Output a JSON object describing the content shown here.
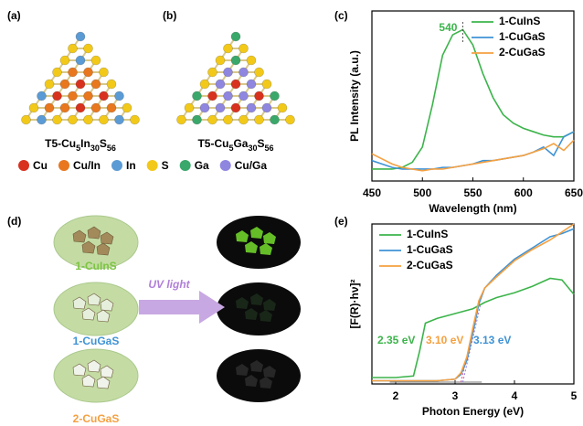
{
  "panel_labels": [
    "(a)",
    "(b)",
    "(c)",
    "(d)",
    "(e)"
  ],
  "structures": [
    {
      "formula": [
        "T5-Cu",
        "5",
        "In",
        "30",
        "S",
        "56"
      ]
    },
    {
      "formula": [
        "T5-Cu",
        "5",
        "Ga",
        "30",
        "S",
        "56"
      ]
    }
  ],
  "atom_legend": [
    {
      "label": "Cu",
      "color": "#d8311e"
    },
    {
      "label": "Cu/In",
      "color": "#e8771e"
    },
    {
      "label": "In",
      "color": "#5b9bd5"
    },
    {
      "label": "S",
      "color": "#f2c919"
    },
    {
      "label": "Ga",
      "color": "#3aa86b"
    },
    {
      "label": "Cu/Ga",
      "color": "#8f86e0"
    }
  ],
  "photos": {
    "samples": [
      {
        "label": "1-CuInS",
        "color": "#7cc443"
      },
      {
        "label": "1-CuGaS",
        "color": "#3f93d6"
      },
      {
        "label": "2-CuGaS",
        "color": "#f5a040"
      }
    ],
    "arrow_label": "UV light"
  },
  "chart_data": [
    {
      "type": "line",
      "x_label": "Wavelength (nm)",
      "y_label": "PL Intensity (a.u.)",
      "xlim": [
        450,
        650
      ],
      "xticks": [
        450,
        500,
        550,
        600,
        650
      ],
      "ylim": [
        0,
        1
      ],
      "legend": "upper right",
      "peak": 540,
      "peak_color": "#3cb44b",
      "x": [
        450,
        460,
        470,
        480,
        490,
        500,
        510,
        520,
        530,
        540,
        550,
        560,
        570,
        580,
        590,
        600,
        610,
        620,
        630,
        640,
        650
      ],
      "series": [
        {
          "name": "1-CuInS",
          "color": "#3cb44b",
          "values": [
            0.07,
            0.07,
            0.07,
            0.08,
            0.11,
            0.2,
            0.45,
            0.74,
            0.86,
            0.89,
            0.8,
            0.63,
            0.49,
            0.39,
            0.34,
            0.31,
            0.29,
            0.27,
            0.26,
            0.26,
            0.29
          ]
        },
        {
          "name": "1-CuGaS",
          "color": "#3f93d6",
          "values": [
            0.12,
            0.1,
            0.08,
            0.07,
            0.07,
            0.07,
            0.07,
            0.08,
            0.08,
            0.09,
            0.1,
            0.12,
            0.12,
            0.13,
            0.14,
            0.15,
            0.17,
            0.2,
            0.15,
            0.26,
            0.29
          ]
        },
        {
          "name": "2-CuGaS",
          "color": "#f5a040",
          "values": [
            0.16,
            0.13,
            0.1,
            0.08,
            0.07,
            0.06,
            0.07,
            0.07,
            0.08,
            0.09,
            0.1,
            0.11,
            0.12,
            0.13,
            0.14,
            0.15,
            0.17,
            0.19,
            0.22,
            0.18,
            0.24
          ]
        }
      ]
    },
    {
      "type": "line",
      "x_label": "Photon Energy (eV)",
      "y_label": "[F(R)·hν]²",
      "xlim": [
        1.6,
        5
      ],
      "xticks": [
        2,
        3,
        4,
        5
      ],
      "ylim": [
        0,
        1
      ],
      "legend": "upper left",
      "x": [
        1.6,
        2.0,
        2.3,
        2.4,
        2.5,
        2.7,
        3.0,
        3.1,
        3.2,
        3.3,
        3.4,
        3.5,
        3.7,
        4.0,
        4.3,
        4.6,
        4.8,
        5.0
      ],
      "series": [
        {
          "name": "1-CuInS",
          "color": "#3cb44b",
          "values": [
            0.04,
            0.04,
            0.05,
            0.2,
            0.38,
            0.41,
            0.44,
            0.45,
            0.46,
            0.47,
            0.49,
            0.51,
            0.54,
            0.57,
            0.61,
            0.66,
            0.65,
            0.56
          ]
        },
        {
          "name": "1-CuGaS",
          "color": "#3f93d6",
          "values": [
            0.02,
            0.02,
            0.02,
            0.02,
            0.02,
            0.02,
            0.03,
            0.06,
            0.15,
            0.32,
            0.5,
            0.6,
            0.68,
            0.78,
            0.85,
            0.92,
            0.94,
            0.97
          ]
        },
        {
          "name": "2-CuGaS",
          "color": "#f5a040",
          "values": [
            0.02,
            0.02,
            0.02,
            0.02,
            0.02,
            0.02,
            0.03,
            0.07,
            0.17,
            0.35,
            0.52,
            0.6,
            0.67,
            0.77,
            0.84,
            0.9,
            0.95,
            1.0
          ]
        }
      ],
      "annotations": [
        {
          "text": "2.35 eV",
          "color": "#3cb44b"
        },
        {
          "text": "3.10 eV",
          "color": "#f5a040"
        },
        {
          "text": "3.13 eV",
          "color": "#3f93d6"
        }
      ]
    }
  ]
}
